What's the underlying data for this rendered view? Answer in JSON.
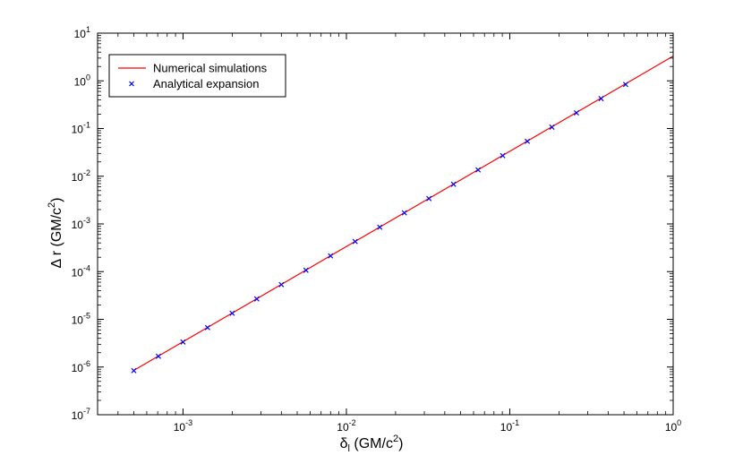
{
  "chart_data": {
    "type": "line",
    "xscale": "log",
    "yscale": "log",
    "xlim": [
      0.0003,
      1
    ],
    "ylim": [
      1e-07,
      10
    ],
    "xlabel": {
      "main": "δ",
      "sub": "l",
      "rest": " (GM/c",
      "sup": "2",
      "end": ")"
    },
    "ylabel": {
      "main": "Δ r (GM/c",
      "sup": "2",
      "end": ")"
    },
    "x_ticks": [
      {
        "value": 0.001,
        "base": "10",
        "exp": "-3"
      },
      {
        "value": 0.01,
        "base": "10",
        "exp": "-2"
      },
      {
        "value": 0.1,
        "base": "10",
        "exp": "-1"
      },
      {
        "value": 1,
        "base": "10",
        "exp": "0"
      }
    ],
    "y_ticks": [
      {
        "value": 1e-07,
        "base": "10",
        "exp": "-7"
      },
      {
        "value": 1e-06,
        "base": "10",
        "exp": "-6"
      },
      {
        "value": 1e-05,
        "base": "10",
        "exp": "-5"
      },
      {
        "value": 0.0001,
        "base": "10",
        "exp": "-4"
      },
      {
        "value": 0.001,
        "base": "10",
        "exp": "-3"
      },
      {
        "value": 0.01,
        "base": "10",
        "exp": "-2"
      },
      {
        "value": 0.1,
        "base": "10",
        "exp": "-1"
      },
      {
        "value": 1,
        "base": "10",
        "exp": "0"
      },
      {
        "value": 10,
        "base": "10",
        "exp": "1"
      }
    ],
    "grid": false,
    "legend_position": "top-left",
    "series": [
      {
        "name": "Numerical simulations",
        "style": "line",
        "color": "#ff0000",
        "x": [
          0.0005,
          1
        ],
        "y": [
          8.5e-07,
          3.3
        ]
      },
      {
        "name": "Analytical expansion",
        "style": "x-marker",
        "color": "#0000ff",
        "x": [
          0.0005,
          0.000707,
          0.001,
          0.001414,
          0.002,
          0.002828,
          0.004,
          0.005657,
          0.008,
          0.011314,
          0.016,
          0.022627,
          0.032,
          0.045255,
          0.064,
          0.09051,
          0.128,
          0.181019,
          0.256,
          0.362039,
          0.512
        ],
        "y": [
          8.4e-07,
          1.68e-06,
          3.35e-06,
          6.7e-06,
          1.34e-05,
          2.68e-05,
          5.35e-05,
          0.000107,
          0.000214,
          0.000428,
          0.000855,
          0.00171,
          0.0034,
          0.0068,
          0.0136,
          0.027,
          0.054,
          0.107,
          0.213,
          0.425,
          0.84
        ]
      }
    ]
  }
}
